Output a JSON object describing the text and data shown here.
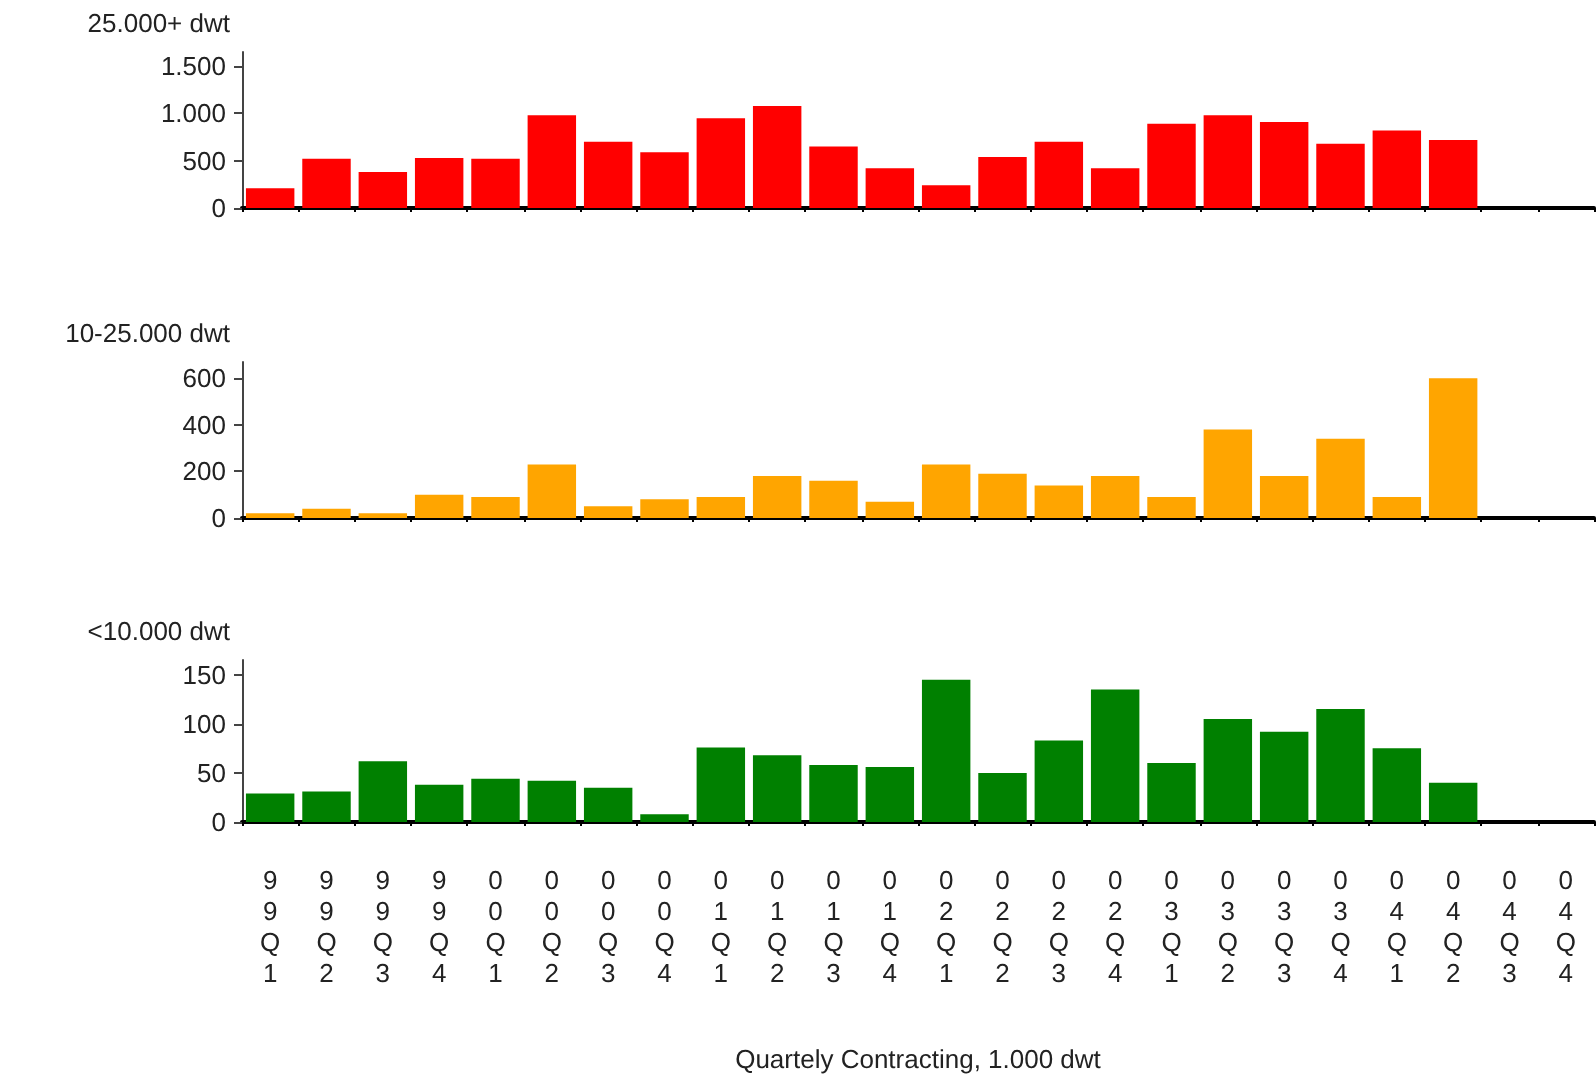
{
  "chart_data": [
    {
      "type": "bar",
      "ylabel": "25.000+ dwt",
      "categories": [
        "99Q1",
        "99Q2",
        "99Q3",
        "99Q4",
        "00Q1",
        "00Q2",
        "00Q3",
        "00Q4",
        "01Q1",
        "01Q2",
        "01Q3",
        "01Q4",
        "02Q1",
        "02Q2",
        "02Q3",
        "02Q4",
        "03Q1",
        "03Q2",
        "03Q3",
        "03Q4",
        "04Q1",
        "04Q2",
        "04Q3",
        "04Q4"
      ],
      "values": [
        210,
        520,
        380,
        530,
        520,
        980,
        700,
        590,
        950,
        1080,
        650,
        420,
        240,
        540,
        700,
        420,
        890,
        980,
        910,
        680,
        820,
        720,
        null,
        null
      ],
      "color": "#ff0000",
      "ylim": [
        0,
        1650
      ],
      "yticks": [
        0,
        500,
        {
          "value": 1000,
          "label": "1.000"
        },
        {
          "value": 1500,
          "label": "1.500"
        }
      ],
      "grid": false,
      "tick_labels": "y"
    },
    {
      "type": "bar",
      "ylabel": "10-25.000 dwt",
      "categories": [
        "99Q1",
        "99Q2",
        "99Q3",
        "99Q4",
        "00Q1",
        "00Q2",
        "00Q3",
        "00Q4",
        "01Q1",
        "01Q2",
        "01Q3",
        "01Q4",
        "02Q1",
        "02Q2",
        "02Q3",
        "02Q4",
        "03Q1",
        "03Q2",
        "03Q3",
        "03Q4",
        "04Q1",
        "04Q2",
        "04Q3",
        "04Q4"
      ],
      "values": [
        20,
        40,
        20,
        100,
        90,
        230,
        50,
        80,
        90,
        180,
        160,
        70,
        230,
        190,
        140,
        180,
        90,
        380,
        180,
        340,
        90,
        600,
        null,
        null
      ],
      "color": "#ffa500",
      "ylim": [
        0,
        670
      ],
      "yticks": [
        0,
        200,
        400,
        600
      ],
      "grid": false,
      "tick_labels": "y"
    },
    {
      "type": "bar",
      "ylabel": "<10.000 dwt",
      "xlabel": "Quartely Contracting, 1.000 dwt",
      "categories": [
        "99Q1",
        "99Q2",
        "99Q3",
        "99Q4",
        "00Q1",
        "00Q2",
        "00Q3",
        "00Q4",
        "01Q1",
        "01Q2",
        "01Q3",
        "01Q4",
        "02Q1",
        "02Q2",
        "02Q3",
        "02Q4",
        "03Q1",
        "03Q2",
        "03Q3",
        "03Q4",
        "04Q1",
        "04Q2",
        "04Q3",
        "04Q4"
      ],
      "values": [
        29,
        31,
        62,
        38,
        44,
        42,
        35,
        8,
        76,
        68,
        58,
        56,
        145,
        50,
        83,
        135,
        60,
        105,
        92,
        115,
        75,
        40,
        null,
        null
      ],
      "color": "#008000",
      "ylim": [
        0,
        165
      ],
      "yticks": [
        0,
        50,
        100,
        150
      ],
      "grid": false
    }
  ]
}
